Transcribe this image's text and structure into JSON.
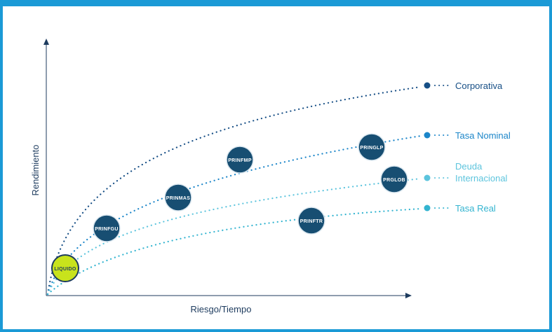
{
  "colors": {
    "frame": "#1b9ad6",
    "axis": "#1d3b5e",
    "node": "#174e72",
    "node_stroke": "#dbe7ef",
    "liquido": "#c8e31c",
    "series": {
      "corporativa": "#174f86",
      "tasa_nominal": "#1c86c9",
      "deuda_internacional": "#5cc4dd",
      "tasa_real": "#33b4d0"
    }
  },
  "axes": {
    "y_label": "Rendimiento",
    "x_label": "Riesgo/Tiempo"
  },
  "series": [
    {
      "id": "corporativa",
      "legend": [
        "Corporativa"
      ]
    },
    {
      "id": "tasa_nominal",
      "legend": [
        "Tasa Nominal"
      ]
    },
    {
      "id": "deuda_internacional",
      "legend": [
        "Deuda",
        "Internacional"
      ]
    },
    {
      "id": "tasa_real",
      "legend": [
        "Tasa Real"
      ]
    }
  ],
  "nodes": {
    "liquido": "LIQUIDO",
    "prinfgu": "PRINFGU",
    "prinmas": "PRINMAS",
    "prinfmp": "PRINFMP",
    "pringlp": "PRINGLP",
    "prglob": "PRGLOB",
    "prinftr": "PRINFTR"
  }
}
